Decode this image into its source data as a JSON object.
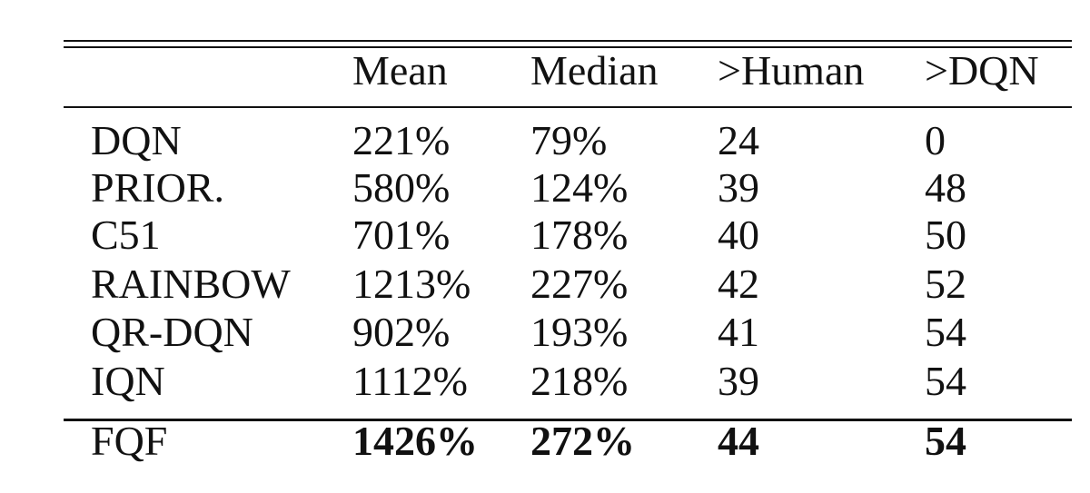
{
  "table": {
    "header": [
      "",
      "Mean",
      "Median",
      ">Human",
      ">DQN"
    ],
    "rows": [
      [
        "DQN",
        "221%",
        "79%",
        "24",
        "0"
      ],
      [
        "PRIOR.",
        "580%",
        "124%",
        "39",
        "48"
      ],
      [
        "C51",
        "701%",
        "178%",
        "40",
        "50"
      ],
      [
        "RAINBOW",
        "1213%",
        "227%",
        "42",
        "52"
      ],
      [
        "QR-DQN",
        "902%",
        "193%",
        "41",
        "54"
      ],
      [
        "IQN",
        "1112%",
        "218%",
        "39",
        "54"
      ],
      [
        "FQF",
        "1426%",
        "272%",
        "44",
        "54"
      ]
    ]
  }
}
